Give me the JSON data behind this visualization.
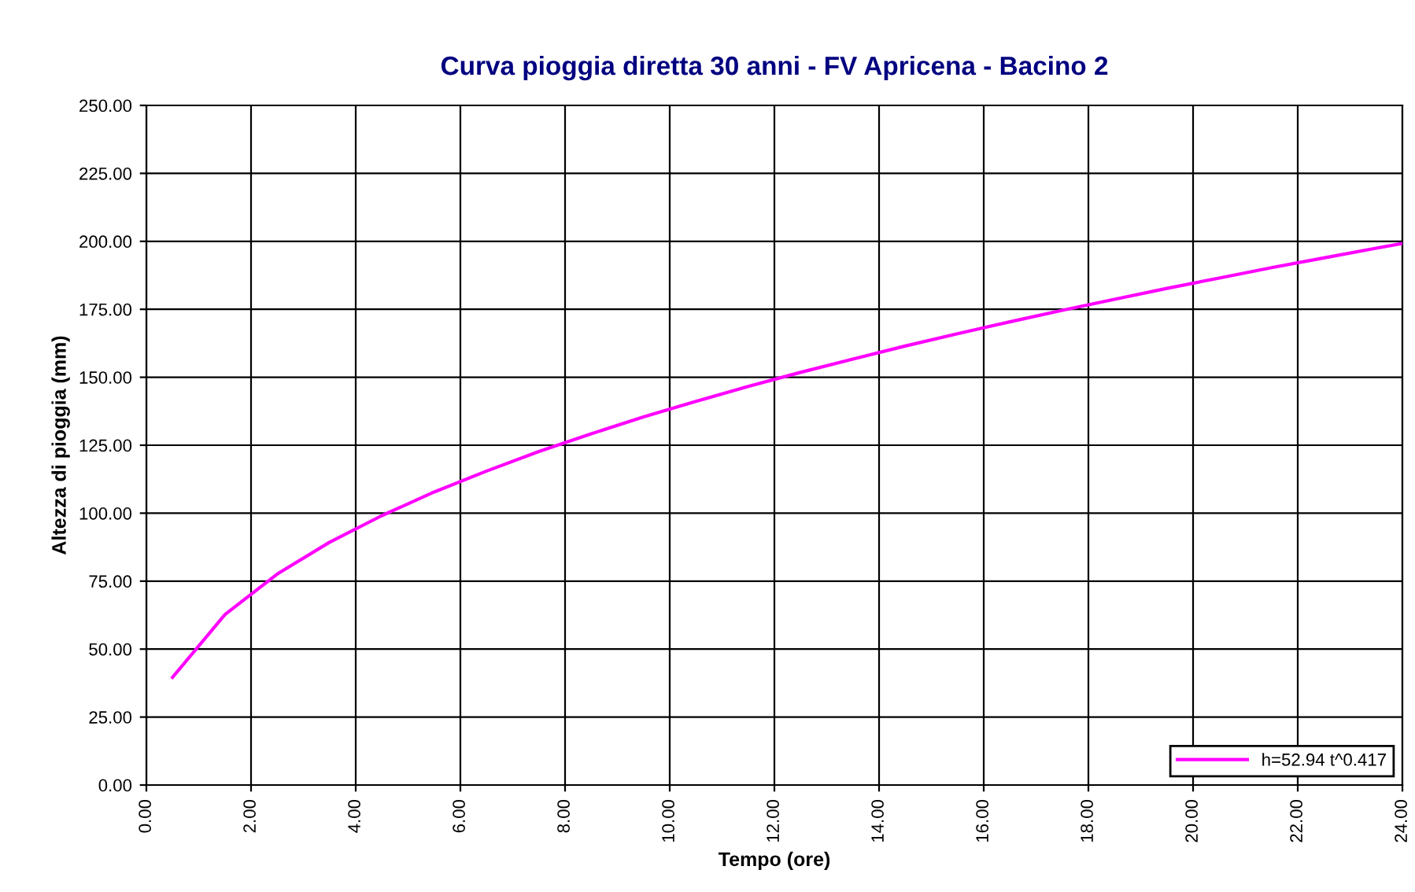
{
  "chart_data": {
    "type": "line",
    "title": "Curva pioggia diretta 30 anni - FV Apricena - Bacino 2",
    "xlabel": "Tempo (ore)",
    "ylabel": "Altezza di pioggia (mm)",
    "series": [
      {
        "name": "h=52.94 t^0.417",
        "color": "#ff00ff",
        "x": [
          0.5,
          1.5,
          2.5,
          3.5,
          4.5,
          5.5,
          6.5,
          7.5,
          8.5,
          9.5,
          10.5,
          11.5,
          12.5,
          13.5,
          14.5,
          15.5,
          16.5,
          17.5,
          18.5,
          19.5,
          20.5,
          21.5,
          22.5,
          23.5,
          24
        ],
        "values": [
          39.6,
          62.7,
          77.6,
          89.3,
          99.1,
          107.8,
          115.5,
          122.7,
          129.2,
          135.4,
          141.1,
          146.6,
          151.8,
          156.7,
          161.5,
          166.0,
          170.4,
          174.6,
          178.7,
          182.7,
          186.5,
          190.3,
          193.9,
          197.5,
          199.2
        ]
      }
    ],
    "xlim": [
      0,
      24
    ],
    "ylim": [
      0,
      250
    ],
    "xticks": [
      {
        "value": 0,
        "label": "0.00"
      },
      {
        "value": 2,
        "label": "2.00"
      },
      {
        "value": 4,
        "label": "4.00"
      },
      {
        "value": 6,
        "label": "6.00"
      },
      {
        "value": 8,
        "label": "8.00"
      },
      {
        "value": 10,
        "label": "10.00"
      },
      {
        "value": 12,
        "label": "12.00"
      },
      {
        "value": 14,
        "label": "14.00"
      },
      {
        "value": 16,
        "label": "16.00"
      },
      {
        "value": 18,
        "label": "18.00"
      },
      {
        "value": 20,
        "label": "20.00"
      },
      {
        "value": 22,
        "label": "22.00"
      },
      {
        "value": 24,
        "label": "24.00"
      }
    ],
    "yticks": [
      {
        "value": 0,
        "label": "0.00"
      },
      {
        "value": 25,
        "label": "25.00"
      },
      {
        "value": 50,
        "label": "50.00"
      },
      {
        "value": 75,
        "label": "75.00"
      },
      {
        "value": 100,
        "label": "100.00"
      },
      {
        "value": 125,
        "label": "125.00"
      },
      {
        "value": 150,
        "label": "150.00"
      },
      {
        "value": 175,
        "label": "175.00"
      },
      {
        "value": 200,
        "label": "200.00"
      },
      {
        "value": 225,
        "label": "225.00"
      },
      {
        "value": 250,
        "label": "250.00"
      }
    ],
    "grid": true,
    "legend": "bottom right",
    "marker": "none",
    "line_style": "solid"
  }
}
